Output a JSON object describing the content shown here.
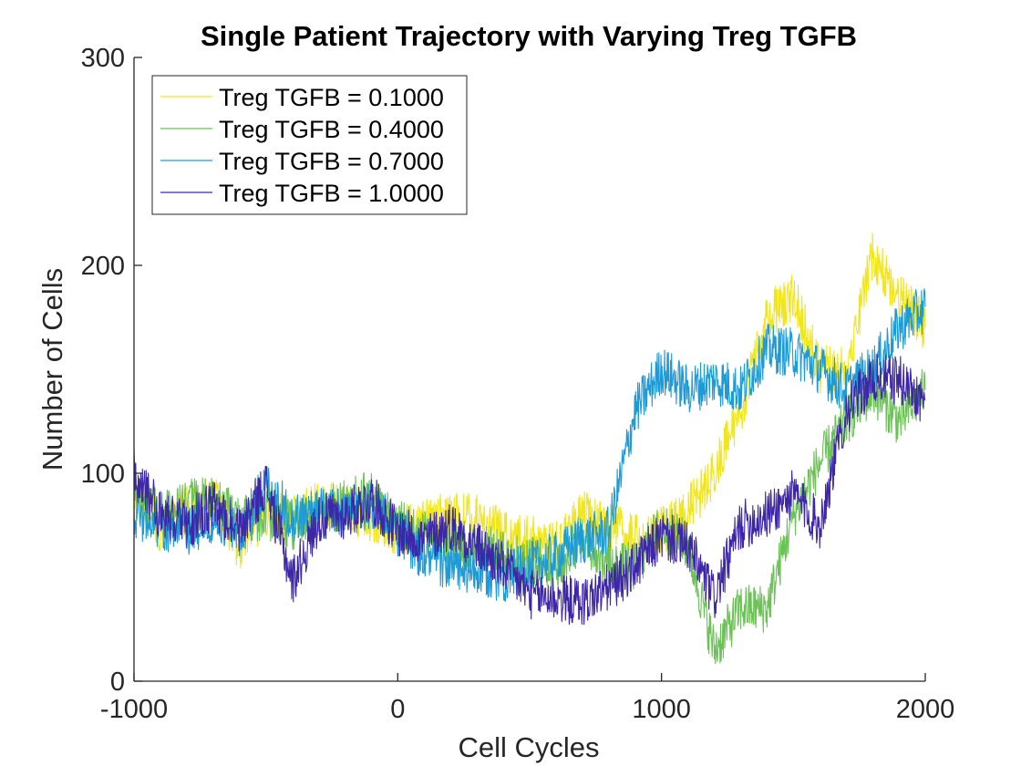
{
  "chart_data": {
    "type": "line",
    "title": "Single Patient Trajectory with Varying Treg TGFB",
    "xlabel": "Cell Cycles",
    "ylabel": "Number of Cells",
    "xlim": [
      -1000,
      2000
    ],
    "ylim": [
      0,
      300
    ],
    "xticks": [
      "-1000",
      "0",
      "1000",
      "2000"
    ],
    "yticks": [
      "0",
      "100",
      "200",
      "300"
    ],
    "grid": false,
    "legend_position": "top-left",
    "x": [
      -1000,
      -900,
      -800,
      -700,
      -600,
      -500,
      -400,
      -300,
      -200,
      -100,
      0,
      100,
      200,
      300,
      400,
      500,
      600,
      700,
      800,
      900,
      1000,
      1100,
      1200,
      1300,
      1400,
      1500,
      1600,
      1700,
      1800,
      1900,
      2000
    ],
    "series": [
      {
        "name": "Treg TGFB = 0.1000",
        "color": "#f1e61b",
        "values": [
          95,
          72,
          82,
          88,
          65,
          82,
          78,
          85,
          84,
          78,
          72,
          75,
          80,
          78,
          72,
          68,
          65,
          80,
          75,
          68,
          72,
          82,
          100,
          130,
          175,
          185,
          150,
          150,
          205,
          185,
          170
        ]
      },
      {
        "name": "Treg TGFB = 0.4000",
        "color": "#6cc257",
        "values": [
          90,
          80,
          85,
          88,
          78,
          80,
          75,
          82,
          85,
          90,
          75,
          70,
          68,
          65,
          60,
          58,
          55,
          70,
          55,
          55,
          75,
          65,
          15,
          35,
          35,
          80,
          105,
          125,
          140,
          125,
          140
        ]
      },
      {
        "name": "Treg TGFB = 0.7000",
        "color": "#1e9bd7",
        "values": [
          80,
          75,
          72,
          78,
          70,
          95,
          78,
          82,
          80,
          85,
          72,
          60,
          55,
          52,
          50,
          55,
          60,
          68,
          72,
          130,
          150,
          140,
          145,
          140,
          160,
          158,
          150,
          140,
          150,
          170,
          180
        ]
      },
      {
        "name": "Treg TGFB = 1.0000",
        "color": "#3e26a8",
        "values": [
          100,
          80,
          75,
          85,
          72,
          95,
          48,
          78,
          80,
          88,
          72,
          68,
          75,
          65,
          55,
          42,
          40,
          38,
          45,
          55,
          70,
          65,
          40,
          75,
          80,
          90,
          75,
          130,
          145,
          145,
          135
        ]
      }
    ]
  }
}
